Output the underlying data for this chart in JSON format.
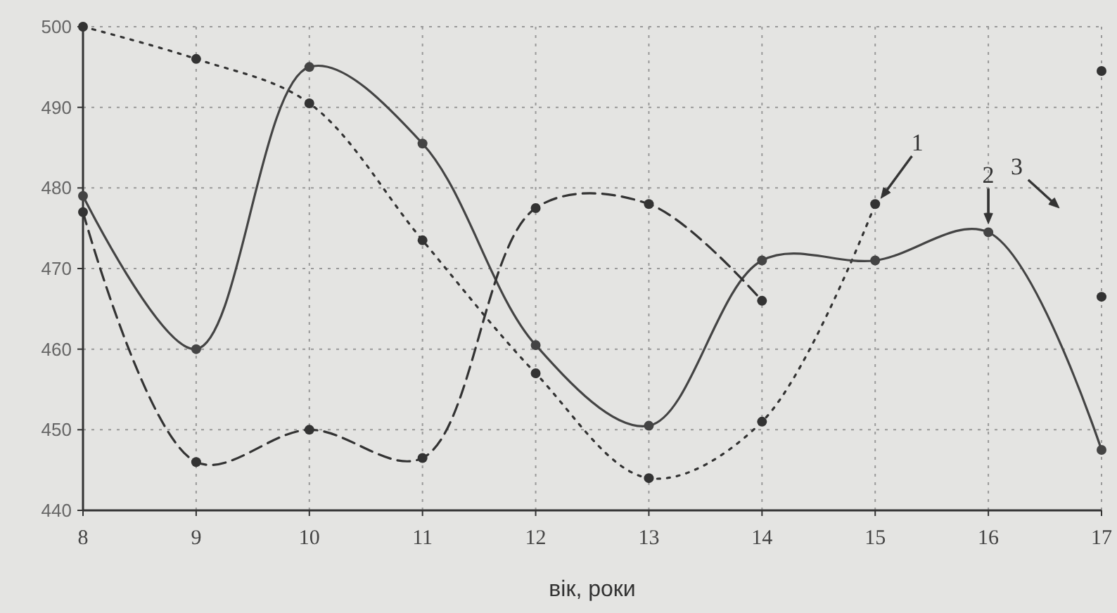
{
  "chart_data": {
    "type": "line",
    "xlabel": "вік, роки",
    "x": [
      8,
      9,
      10,
      11,
      12,
      13,
      14,
      15,
      16,
      17
    ],
    "series": [
      {
        "color": "#333333",
        "line_style": "dotted",
        "values": [
          500,
          496,
          490.5,
          473.5,
          457,
          444,
          451,
          478,
          null,
          466.5
        ]
      },
      {
        "color": "#444444",
        "line_style": "solid",
        "values": [
          479,
          460,
          495,
          485.5,
          460.5,
          450.5,
          471,
          471,
          474.5,
          447.5
        ]
      },
      {
        "color": "#333333",
        "line_style": "dashed",
        "values": [
          477,
          446,
          450,
          446.5,
          477.5,
          478,
          466,
          null,
          null,
          494.5
        ]
      }
    ],
    "xlim": [
      8,
      17
    ],
    "xticks": [
      8,
      9,
      10,
      11,
      12,
      13,
      14,
      15,
      16,
      17
    ],
    "ylim": [
      440,
      500
    ],
    "yticks": [
      440,
      450,
      460,
      470,
      480,
      490,
      500
    ],
    "grid": true,
    "marker": "circle",
    "annotations": [
      {
        "text": "1",
        "x": 15,
        "y": 478
      },
      {
        "text": "2",
        "x": 16,
        "y": 474.5
      },
      "3"
    ]
  }
}
